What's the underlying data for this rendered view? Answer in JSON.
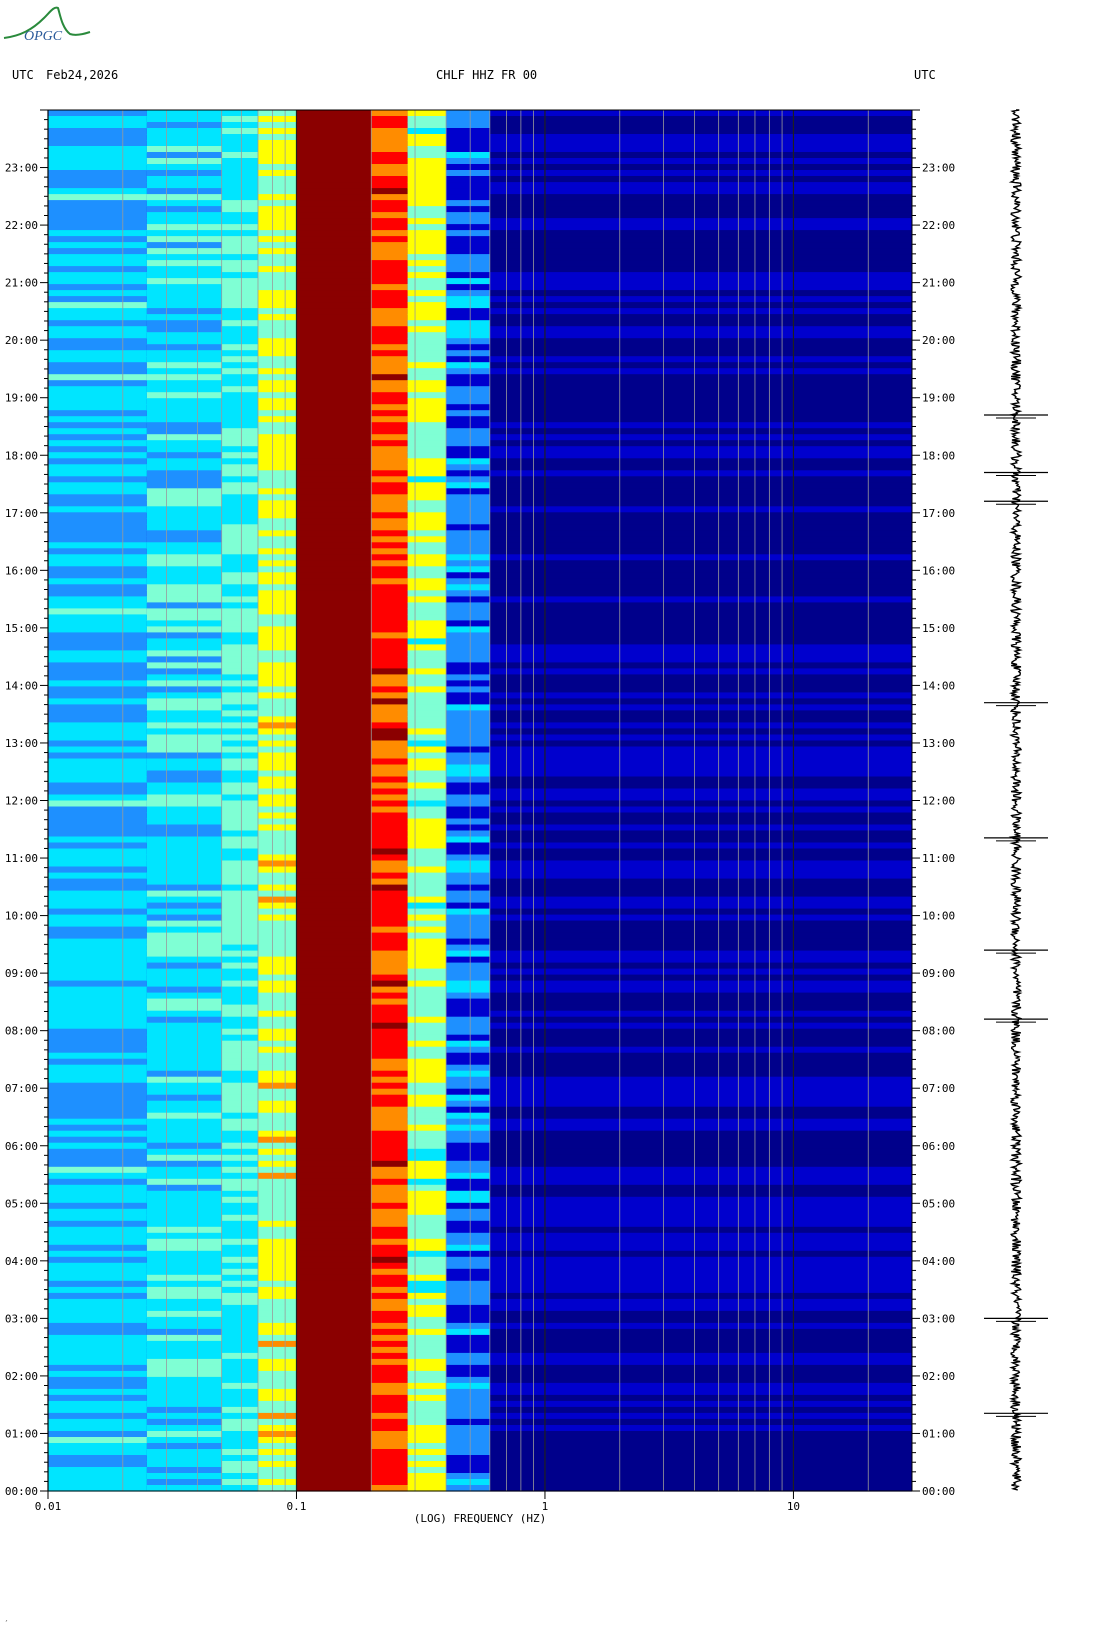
{
  "header": {
    "left_tz": "UTC",
    "date": "Feb24,2026",
    "station": "CHLF HHZ FR 00",
    "right_tz": "UTC"
  },
  "logo": {
    "text": "OPGC",
    "color": "#2a8a3c"
  },
  "footer": {
    "mark": "´"
  },
  "chart_data": {
    "type": "heatmap",
    "title": "CHLF HHZ FR 00",
    "xlabel": "(LOG) FREQUENCY (HZ)",
    "x_scale": "log",
    "xlim": [
      0.01,
      30
    ],
    "x_ticks": [
      {
        "value": 0.01,
        "label": "0.01"
      },
      {
        "value": 0.1,
        "label": "0.1"
      },
      {
        "value": 1,
        "label": "1"
      },
      {
        "value": 10,
        "label": "10"
      }
    ],
    "ylim_hours": [
      0,
      24
    ],
    "y_tick_labels": [
      "00:00",
      "01:00",
      "02:00",
      "03:00",
      "04:00",
      "05:00",
      "06:00",
      "07:00",
      "08:00",
      "09:00",
      "10:00",
      "11:00",
      "12:00",
      "13:00",
      "14:00",
      "15:00",
      "16:00",
      "17:00",
      "18:00",
      "19:00",
      "20:00",
      "21:00",
      "22:00",
      "23:00"
    ],
    "colormap": [
      "#00008b",
      "#0000cd",
      "#1e90ff",
      "#00e5ff",
      "#7fffd4",
      "#ffff00",
      "#ff8c00",
      "#ff0000",
      "#8b0000"
    ],
    "frequency_bands_hz": [
      {
        "from": 0.01,
        "to": 0.025,
        "level": "cyan-blue"
      },
      {
        "from": 0.025,
        "to": 0.05,
        "level": "cyan"
      },
      {
        "from": 0.05,
        "to": 0.07,
        "level": "cyan-green"
      },
      {
        "from": 0.07,
        "to": 0.1,
        "level": "yellow"
      },
      {
        "from": 0.1,
        "to": 0.2,
        "level": "dark-red"
      },
      {
        "from": 0.2,
        "to": 0.28,
        "level": "red-orange"
      },
      {
        "from": 0.28,
        "to": 0.4,
        "level": "yellow-cyan"
      },
      {
        "from": 0.4,
        "to": 0.6,
        "level": "blue"
      },
      {
        "from": 0.6,
        "to": 30,
        "level": "dark-blue"
      }
    ],
    "events_hours": [
      1.35,
      3.0,
      8.2,
      9.4,
      11.35,
      13.7,
      17.2,
      17.7,
      18.7
    ]
  }
}
